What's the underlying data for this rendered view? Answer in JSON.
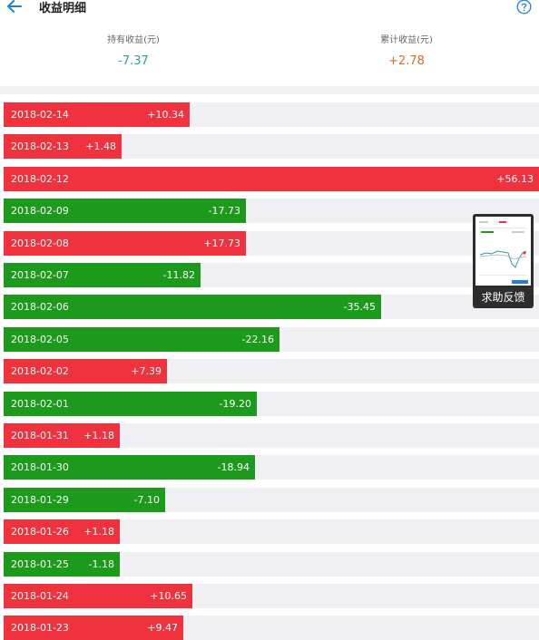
{
  "header": {
    "title": "收益明细",
    "back_icon": "arrow-left-icon",
    "help_icon": "question-circle-icon"
  },
  "summary": {
    "holding_label": "持有收益(元)",
    "holding_value": "-7.37",
    "cumulative_label": "累计收益(元)",
    "cumulative_value": "+2.78"
  },
  "colors": {
    "positive": "#f0323f",
    "negative": "#1c9a1c",
    "track": "#f0f0f4",
    "teal": "#2a9d9d",
    "orange": "#e06a2a"
  },
  "scale_max": 56.13,
  "rows": [
    {
      "date": "2018-02-14",
      "value": "+10.34",
      "amount": 10.34
    },
    {
      "date": "2018-02-13",
      "value": "+1.48",
      "amount": 1.48
    },
    {
      "date": "2018-02-12",
      "value": "+56.13",
      "amount": 56.13
    },
    {
      "date": "2018-02-09",
      "value": "-17.73",
      "amount": -17.73
    },
    {
      "date": "2018-02-08",
      "value": "+17.73",
      "amount": 17.73
    },
    {
      "date": "2018-02-07",
      "value": "-11.82",
      "amount": -11.82
    },
    {
      "date": "2018-02-06",
      "value": "-35.45",
      "amount": -35.45
    },
    {
      "date": "2018-02-05",
      "value": "-22.16",
      "amount": -22.16
    },
    {
      "date": "2018-02-02",
      "value": "+7.39",
      "amount": 7.39
    },
    {
      "date": "2018-02-01",
      "value": "-19.20",
      "amount": -19.2
    },
    {
      "date": "2018-01-31",
      "value": "+1.18",
      "amount": 1.18
    },
    {
      "date": "2018-01-30",
      "value": "-18.94",
      "amount": -18.94
    },
    {
      "date": "2018-01-29",
      "value": "-7.10",
      "amount": -7.1
    },
    {
      "date": "2018-01-26",
      "value": "+1.18",
      "amount": 1.18
    },
    {
      "date": "2018-01-25",
      "value": "-1.18",
      "amount": -1.18
    },
    {
      "date": "2018-01-24",
      "value": "+10.65",
      "amount": 10.65
    },
    {
      "date": "2018-01-23",
      "value": "+9.47",
      "amount": 9.47
    }
  ],
  "feedback": {
    "label": "求助反馈"
  }
}
